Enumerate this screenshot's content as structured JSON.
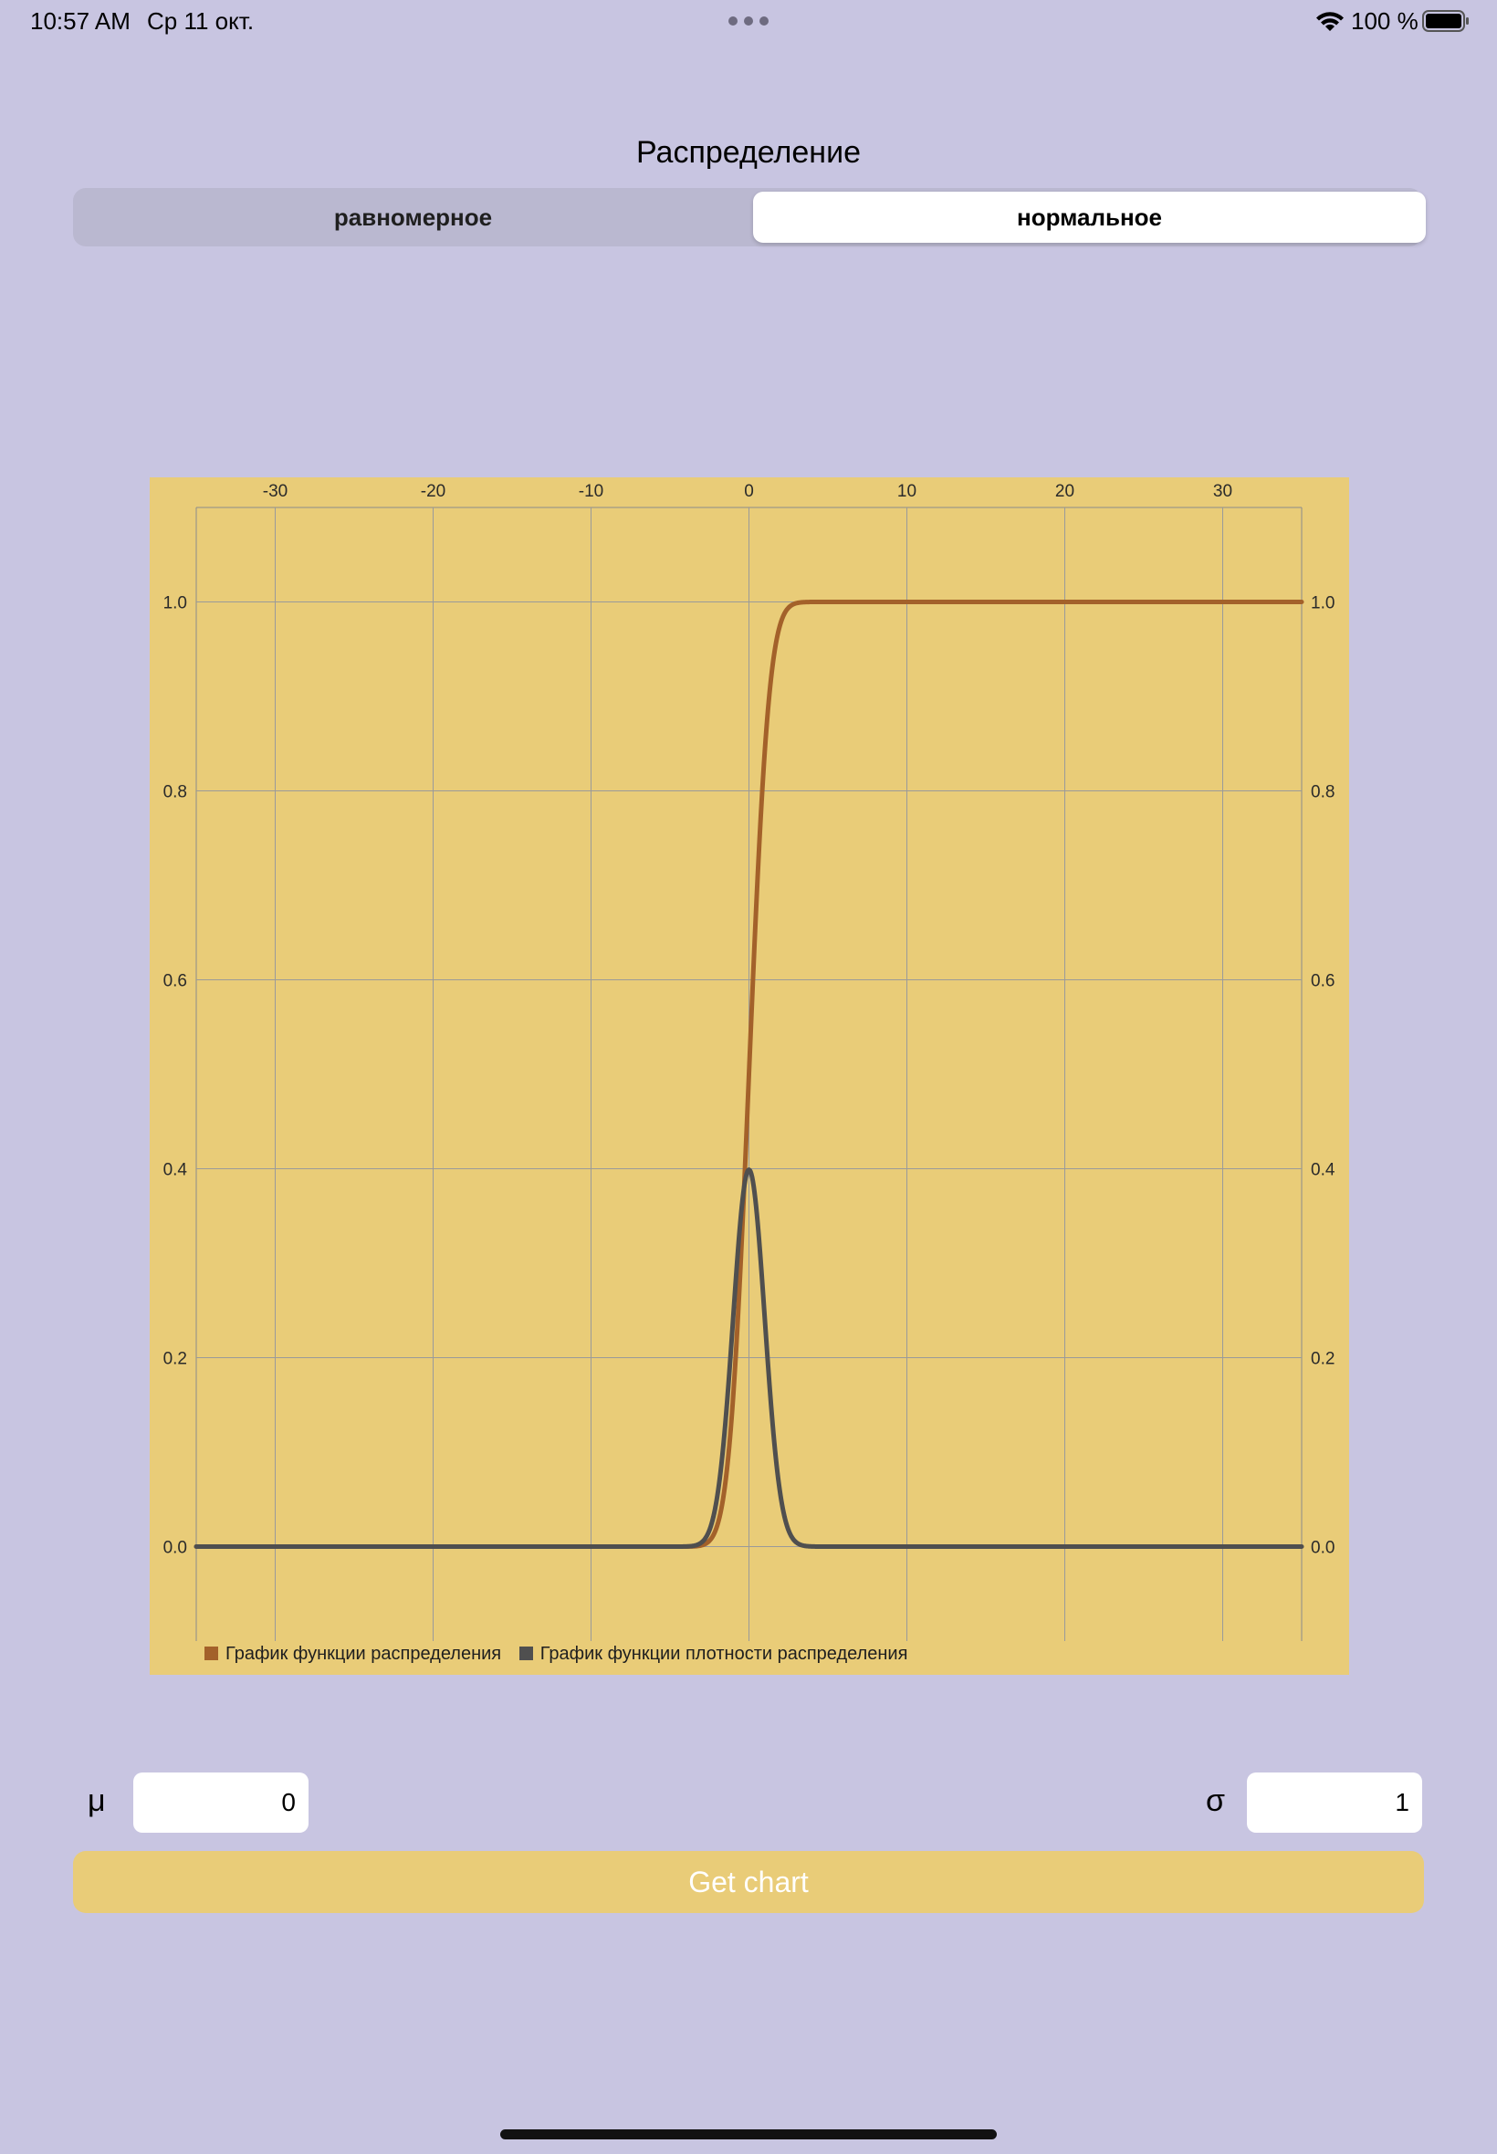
{
  "status_bar": {
    "time": "10:57 AM",
    "date": "Ср 11 окт.",
    "battery_percent": "100 %",
    "battery_level": 1.0,
    "icons": [
      "multitask-dots-icon",
      "wifi-icon",
      "battery-icon"
    ]
  },
  "distribution": {
    "title": "Распределение",
    "segments": [
      "равномерное",
      "нормальное"
    ],
    "selected_index": 1
  },
  "chart_data": {
    "type": "line",
    "title": "",
    "xlabel": "",
    "ylabel": "",
    "xlim": [
      -35,
      35
    ],
    "ylim": [
      -0.1,
      1.1
    ],
    "x_ticks": [
      -30,
      -20,
      -10,
      0,
      10,
      20,
      30
    ],
    "y_ticks": [
      0.0,
      0.2,
      0.4,
      0.6,
      0.8,
      1.0
    ],
    "x_axis_position": "top",
    "y_axis_position": "left-and-right",
    "grid": true,
    "legend_position": "bottom-left",
    "series": [
      {
        "name": "График функции распределения",
        "color": "#a3612a",
        "function": "normal_cdf",
        "mu": 0,
        "sigma": 1,
        "x_range": [
          -35,
          35
        ]
      },
      {
        "name": "График функции плотности распределения",
        "color": "#4f4f4f",
        "function": "normal_pdf",
        "mu": 0,
        "sigma": 1,
        "x_range": [
          -35,
          35
        ]
      }
    ]
  },
  "params": {
    "mu_label": "μ",
    "mu_value": "0",
    "sigma_label": "σ",
    "sigma_value": "1"
  },
  "actions": {
    "get_chart_label": "Get chart"
  },
  "colors": {
    "background": "#c8c5e1",
    "chart_background": "#e9cc78",
    "button": "#e9cc78"
  }
}
